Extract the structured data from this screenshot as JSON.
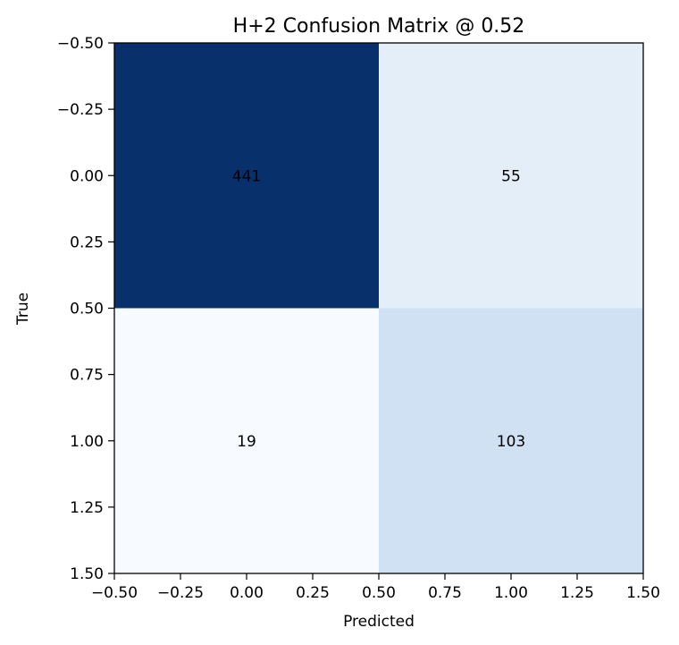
{
  "chart_data": {
    "type": "heatmap",
    "title": "H+2 Confusion Matrix @ 0.52",
    "xlabel": "Predicted",
    "ylabel": "True",
    "matrix": [
      [
        441,
        55
      ],
      [
        19,
        103
      ]
    ],
    "colormap": "Blues",
    "xlim": [
      -0.5,
      1.5
    ],
    "ylim": [
      1.5,
      -0.5
    ],
    "x_ticks": [
      "−0.50",
      "−0.25",
      "0.00",
      "0.25",
      "0.50",
      "0.75",
      "1.00",
      "1.25",
      "1.50"
    ],
    "y_ticks": [
      "−0.50",
      "−0.25",
      "0.00",
      "0.25",
      "0.50",
      "0.75",
      "1.00",
      "1.25",
      "1.50"
    ],
    "cell_colors": [
      [
        "#08306b",
        "#e3eef8"
      ],
      [
        "#f7fbff",
        "#cfe1f2"
      ]
    ],
    "grid": false,
    "colorbar": false
  }
}
